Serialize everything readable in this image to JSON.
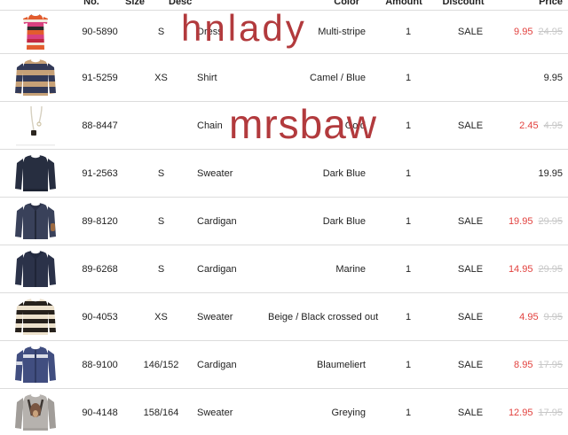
{
  "colors": {
    "sale_red": "#e2413e",
    "old_price_gray": "#c7c7c7",
    "watermark_red": "#b23a3d",
    "row_border": "#dcdcdc"
  },
  "watermarks": [
    {
      "text": "hnlady"
    },
    {
      "text": "mrsbaw"
    }
  ],
  "table": {
    "headers": {
      "no": "No.",
      "size": "Size",
      "desc": "Desc",
      "color": "Color",
      "amount": "Amount",
      "discount": "Discount",
      "price": "Price"
    },
    "rows": [
      {
        "no": "90-5890",
        "size": "S",
        "desc": "Dress",
        "color": "Multi-stripe",
        "amount": "1",
        "discount": "SALE",
        "price": "9.95",
        "old_price": "24.95",
        "thumb": "striped-dress"
      },
      {
        "no": "91-5259",
        "size": "XS",
        "desc": "Shirt",
        "color": "Camel / Blue",
        "amount": "1",
        "discount": "",
        "price": "9.95",
        "old_price": "",
        "thumb": "camel-stripe-sweater"
      },
      {
        "no": "88-8447",
        "size": "",
        "desc": "Chain",
        "color": "Gold",
        "amount": "1",
        "discount": "SALE",
        "price": "2.45",
        "old_price": "4.95",
        "thumb": "chain-necklace"
      },
      {
        "no": "91-2563",
        "size": "S",
        "desc": "Sweater",
        "color": "Dark Blue",
        "amount": "1",
        "discount": "",
        "price": "19.95",
        "old_price": "",
        "thumb": "navy-sweater"
      },
      {
        "no": "89-8120",
        "size": "S",
        "desc": "Cardigan",
        "color": "Dark Blue",
        "amount": "1",
        "discount": "SALE",
        "price": "19.95",
        "old_price": "29.95",
        "thumb": "navy-cardigan-patch"
      },
      {
        "no": "89-6268",
        "size": "S",
        "desc": "Cardigan",
        "color": "Marine",
        "amount": "1",
        "discount": "SALE",
        "price": "14.95",
        "old_price": "29.95",
        "thumb": "marine-cardigan"
      },
      {
        "no": "90-4053",
        "size": "XS",
        "desc": "Sweater",
        "color": "Beige / Black crossed out",
        "amount": "1",
        "discount": "SALE",
        "price": "4.95",
        "old_price": "9.95",
        "thumb": "beige-black-stripe-sweater"
      },
      {
        "no": "88-9100",
        "size": "146/152",
        "desc": "Cardigan",
        "color": "Blaumeliert",
        "amount": "1",
        "discount": "SALE",
        "price": "8.95",
        "old_price": "17.95",
        "thumb": "blue-melange-cardigan"
      },
      {
        "no": "90-4148",
        "size": "158/164",
        "desc": "Sweater",
        "color": "Greying",
        "amount": "1",
        "discount": "SALE",
        "price": "12.95",
        "old_price": "17.95",
        "thumb": "grey-graphic-sweater"
      }
    ]
  }
}
